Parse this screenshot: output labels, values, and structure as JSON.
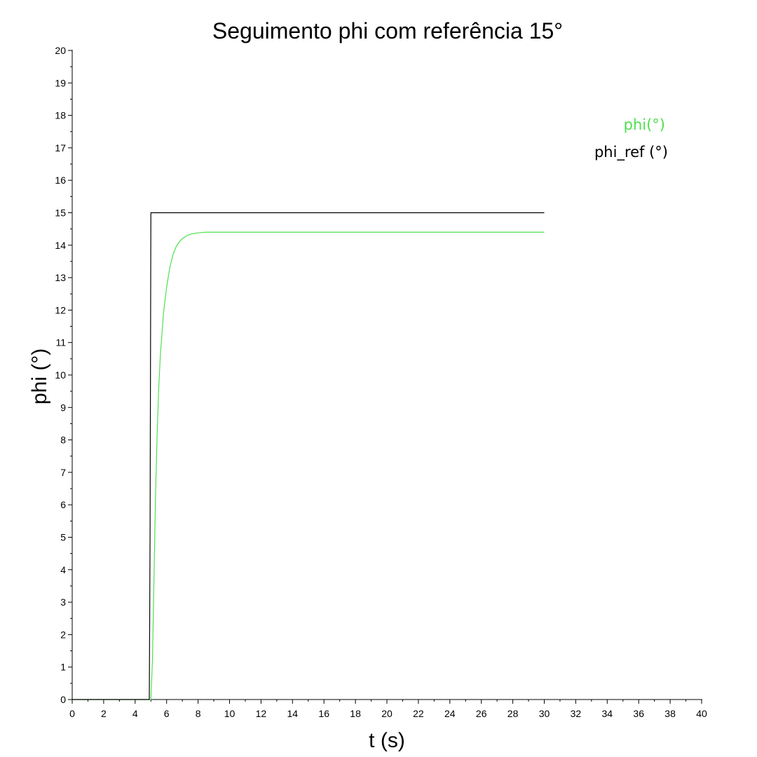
{
  "chart_data": {
    "type": "line",
    "title": "Seguimento phi com referência 15°",
    "xlabel": "t (s)",
    "ylabel": "phi (°)",
    "xlim": [
      0,
      40
    ],
    "ylim": [
      0,
      20
    ],
    "xticks": [
      "0",
      "2",
      "4",
      "6",
      "8",
      "10",
      "12",
      "14",
      "16",
      "18",
      "20",
      "22",
      "24",
      "26",
      "28",
      "30",
      "32",
      "34",
      "36",
      "38",
      "40"
    ],
    "yticks": [
      "0",
      "1",
      "2",
      "3",
      "4",
      "5",
      "6",
      "7",
      "8",
      "9",
      "10",
      "11",
      "12",
      "13",
      "14",
      "15",
      "16",
      "17",
      "18",
      "19",
      "20"
    ],
    "grid": false,
    "legend_position": "top-right",
    "series": [
      {
        "name": "phi(°)",
        "color": "#4fe04f",
        "x": [
          0,
          5.0,
          5.1,
          5.2,
          5.3,
          5.4,
          5.5,
          5.6,
          5.8,
          6.0,
          6.2,
          6.4,
          6.6,
          6.8,
          7.0,
          7.3,
          7.6,
          8.0,
          8.5,
          9.0,
          10.0,
          30
        ],
        "y": [
          0,
          0,
          1.2,
          3.8,
          6.4,
          8.2,
          9.6,
          10.6,
          11.9,
          12.7,
          13.3,
          13.7,
          13.95,
          14.1,
          14.2,
          14.3,
          14.35,
          14.38,
          14.4,
          14.4,
          14.4,
          14.4
        ]
      },
      {
        "name": "phi_ref (°)",
        "color": "#000000",
        "x": [
          0,
          4.9,
          4.95,
          5.0,
          30
        ],
        "y": [
          0,
          0,
          5.2,
          15,
          15
        ]
      }
    ]
  }
}
